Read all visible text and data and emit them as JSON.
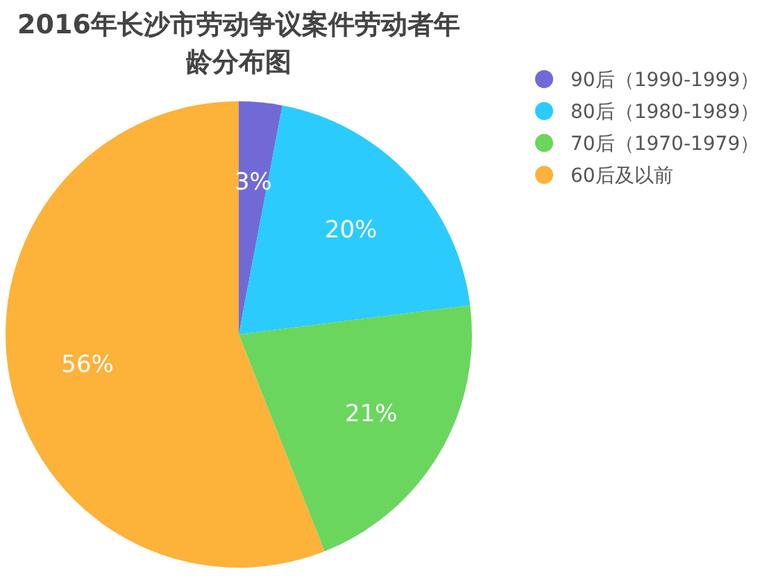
{
  "chart_data": {
    "type": "pie",
    "title": "2016年长沙市劳动争议案件劳动者年龄分布图",
    "categories": [
      "90后（1990-1999）",
      "80后（1980-1989）",
      "70后（1970-1979）",
      "60后及以前"
    ],
    "values": [
      3,
      20,
      21,
      56
    ],
    "colors": [
      "#716ad6",
      "#2ccbfd",
      "#6ad65e",
      "#fdb23a"
    ],
    "value_labels": [
      "3%",
      "20%",
      "21%",
      "56%"
    ],
    "legend": "right"
  }
}
